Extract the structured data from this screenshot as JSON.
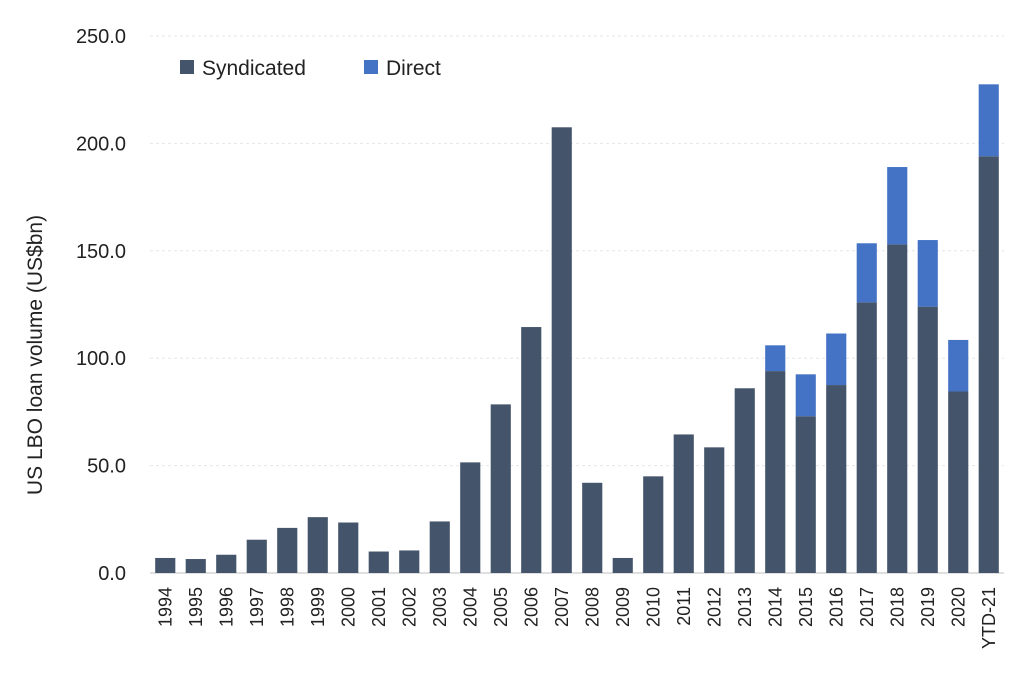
{
  "chart_data": {
    "type": "bar",
    "stacked": true,
    "categories": [
      "1994",
      "1995",
      "1996",
      "1997",
      "1998",
      "1999",
      "2000",
      "2001",
      "2002",
      "2003",
      "2004",
      "2005",
      "2006",
      "2007",
      "2008",
      "2009",
      "2010",
      "2011",
      "2012",
      "2013",
      "2014",
      "2015",
      "2016",
      "2017",
      "2018",
      "2019",
      "2020",
      "YTD-21"
    ],
    "series": [
      {
        "name": "Syndicated",
        "color": "#44546a",
        "values": [
          7.0,
          6.5,
          8.5,
          15.5,
          21.0,
          26.0,
          23.5,
          10.0,
          10.5,
          24.0,
          51.5,
          78.5,
          114.5,
          207.5,
          42.0,
          7.0,
          45.0,
          64.5,
          58.5,
          86.0,
          94.0,
          73.0,
          87.5,
          126.0,
          153.0,
          124.0,
          84.5,
          194.0
        ]
      },
      {
        "name": "Direct",
        "color": "#4472c4",
        "values": [
          0,
          0,
          0,
          0,
          0,
          0,
          0,
          0,
          0,
          0,
          0,
          0,
          0,
          0,
          0,
          0,
          0,
          0,
          0,
          0,
          12.0,
          19.5,
          24.0,
          27.5,
          36.0,
          31.0,
          24.0,
          33.5
        ]
      }
    ],
    "title": "",
    "xlabel": "",
    "ylabel": "US LBO loan volume (US$bn)",
    "ylim": [
      0,
      250
    ],
    "yticks": [
      "0.0",
      "50.0",
      "100.0",
      "150.0",
      "200.0",
      "250.0"
    ],
    "grid": true,
    "legend": "top-left"
  }
}
